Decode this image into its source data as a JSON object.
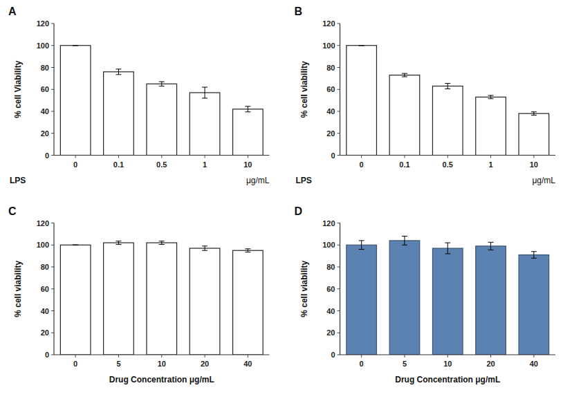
{
  "chart_data": [
    {
      "type": "bar",
      "title": "A",
      "categories": [
        "0",
        "0.1",
        "0.5",
        "1",
        "10"
      ],
      "values": [
        100,
        76,
        65,
        57,
        42
      ],
      "errors": [
        0,
        2.5,
        2.0,
        5.0,
        2.5
      ],
      "color": "white",
      "annotations": [
        "LPS",
        "μg/mL"
      ],
      "ylabel": "% cell Viability",
      "ylim": [
        0,
        120
      ],
      "yticks": [
        0,
        20,
        40,
        60,
        80,
        100,
        120
      ],
      "grid": false
    },
    {
      "type": "bar",
      "title": "B",
      "categories": [
        "0",
        "0.1",
        "0.5",
        "1",
        "10"
      ],
      "values": [
        100,
        73,
        63,
        53,
        38
      ],
      "errors": [
        0,
        1.5,
        2.5,
        1.5,
        1.5
      ],
      "color": "white",
      "annotations": [
        "LPS",
        "μg/mL"
      ],
      "ylabel": "% cell viability",
      "ylim": [
        0,
        120
      ],
      "yticks": [
        0,
        20,
        40,
        60,
        80,
        100,
        120
      ],
      "grid": false
    },
    {
      "type": "bar",
      "title": "C",
      "categories": [
        "0",
        "5",
        "10",
        "20",
        "40"
      ],
      "values": [
        100,
        102,
        102,
        97,
        95
      ],
      "errors": [
        0,
        1.5,
        1.5,
        2.0,
        1.5
      ],
      "color": "white",
      "xlabel": "Drug Concentration μg/mL",
      "ylabel": "% cell viability",
      "ylim": [
        0,
        120
      ],
      "yticks": [
        0,
        20,
        40,
        60,
        80,
        100,
        120
      ],
      "grid": false
    },
    {
      "type": "bar",
      "title": "D",
      "categories": [
        "0",
        "5",
        "10",
        "20",
        "40"
      ],
      "values": [
        100,
        104,
        97,
        99,
        91
      ],
      "errors": [
        4.0,
        4.0,
        5.0,
        3.5,
        3.0
      ],
      "color": "#5b82b0",
      "xlabel": "Drug Concentration μg/mL",
      "ylabel": "% cell viability",
      "ylim": [
        0,
        120
      ],
      "yticks": [
        0,
        20,
        40,
        60,
        80,
        100,
        120
      ],
      "grid": false
    }
  ]
}
